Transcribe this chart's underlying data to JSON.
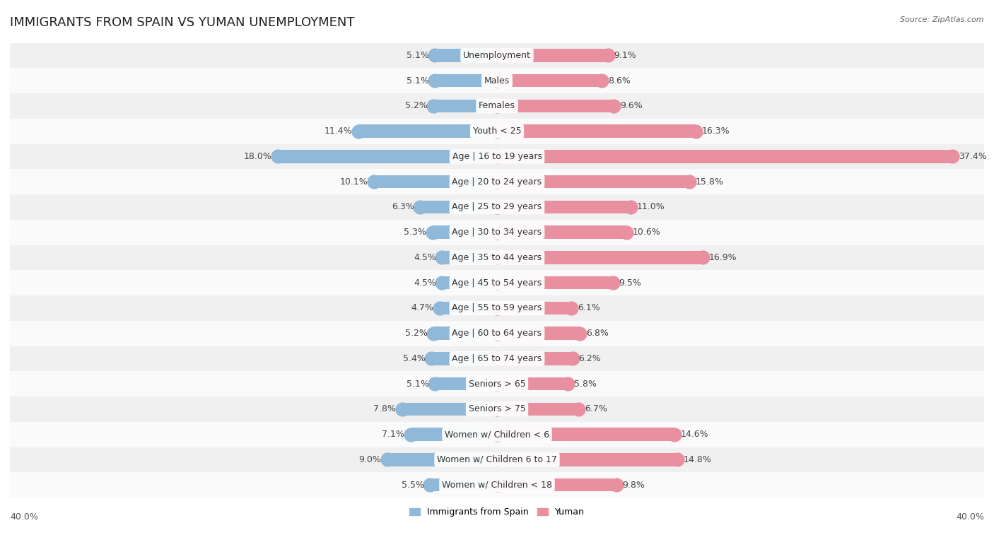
{
  "title": "IMMIGRANTS FROM SPAIN VS YUMAN UNEMPLOYMENT",
  "source": "Source: ZipAtlas.com",
  "categories": [
    "Unemployment",
    "Males",
    "Females",
    "Youth < 25",
    "Age | 16 to 19 years",
    "Age | 20 to 24 years",
    "Age | 25 to 29 years",
    "Age | 30 to 34 years",
    "Age | 35 to 44 years",
    "Age | 45 to 54 years",
    "Age | 55 to 59 years",
    "Age | 60 to 64 years",
    "Age | 65 to 74 years",
    "Seniors > 65",
    "Seniors > 75",
    "Women w/ Children < 6",
    "Women w/ Children 6 to 17",
    "Women w/ Children < 18"
  ],
  "spain_values": [
    5.1,
    5.1,
    5.2,
    11.4,
    18.0,
    10.1,
    6.3,
    5.3,
    4.5,
    4.5,
    4.7,
    5.2,
    5.4,
    5.1,
    7.8,
    7.1,
    9.0,
    5.5
  ],
  "yuman_values": [
    9.1,
    8.6,
    9.6,
    16.3,
    37.4,
    15.8,
    11.0,
    10.6,
    16.9,
    9.5,
    6.1,
    6.8,
    6.2,
    5.8,
    6.7,
    14.6,
    14.8,
    9.8
  ],
  "spain_color": "#90b8d8",
  "yuman_color": "#e890a0",
  "axis_limit": 40.0,
  "bg_color": "#ffffff",
  "row_color_even": "#f0f0f0",
  "row_color_odd": "#fafafa",
  "title_fontsize": 13,
  "label_fontsize": 9,
  "value_fontsize": 9,
  "tick_fontsize": 9,
  "bar_height": 0.52,
  "legend_spain": "Immigrants from Spain",
  "legend_yuman": "Yuman"
}
